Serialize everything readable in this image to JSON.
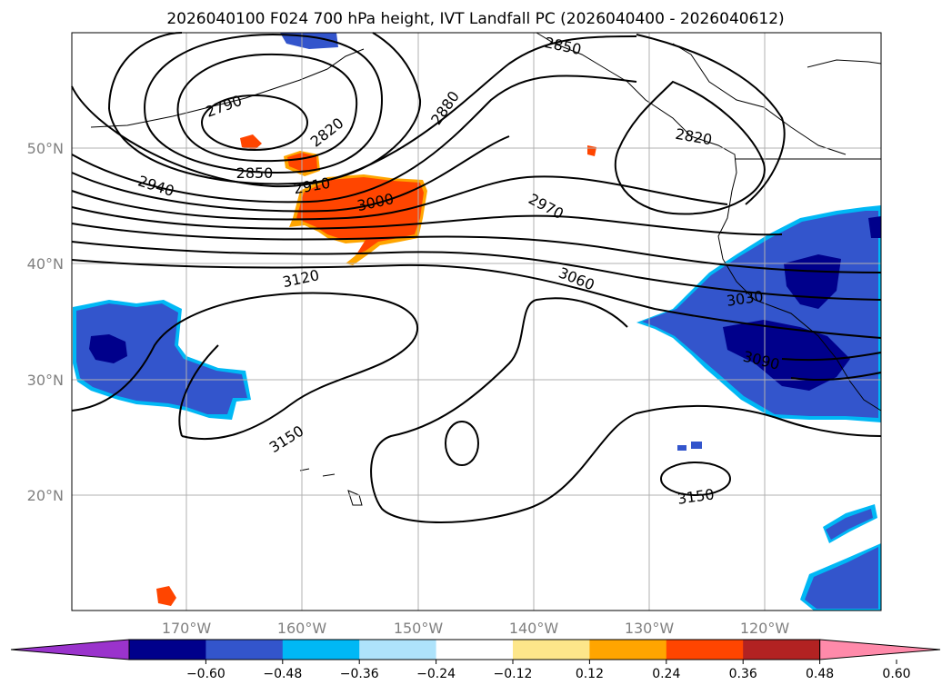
{
  "title": "2026040100 F024 700 hPa height, IVT Landfall PC (2026040400 - 2026040612)",
  "gridlines": {
    "lat_labels": [
      "50°N",
      "40°N",
      "30°N",
      "20°N"
    ],
    "lon_labels": [
      "170°W",
      "160°W",
      "150°W",
      "140°W",
      "130°W",
      "120°W"
    ]
  },
  "contour_labels": [
    "2790",
    "2820",
    "2850",
    "2880",
    "2910",
    "2940",
    "2970",
    "3000",
    "3030",
    "3060",
    "3090",
    "3120",
    "3150",
    "3150",
    "2850",
    "2820"
  ],
  "colorbar": {
    "ticks": [
      "−0.60",
      "−0.48",
      "−0.36",
      "−0.24",
      "−0.12",
      "0.12",
      "0.24",
      "0.36",
      "0.48",
      "0.60"
    ],
    "colors": [
      "#9a33cc",
      "#00008b",
      "#3355cc",
      "#00b8f5",
      "#aee3fb",
      "#ffffff",
      "#fde68a",
      "#ffa500",
      "#ff4500",
      "#b22222",
      "#ff8aaa"
    ]
  },
  "colors": {
    "negative_fill": "#3355cc",
    "strong_negative_fill": "#00008b",
    "positive_fill": "#ff4500",
    "contour": "#000000",
    "grid": "#b0b0b0"
  }
}
